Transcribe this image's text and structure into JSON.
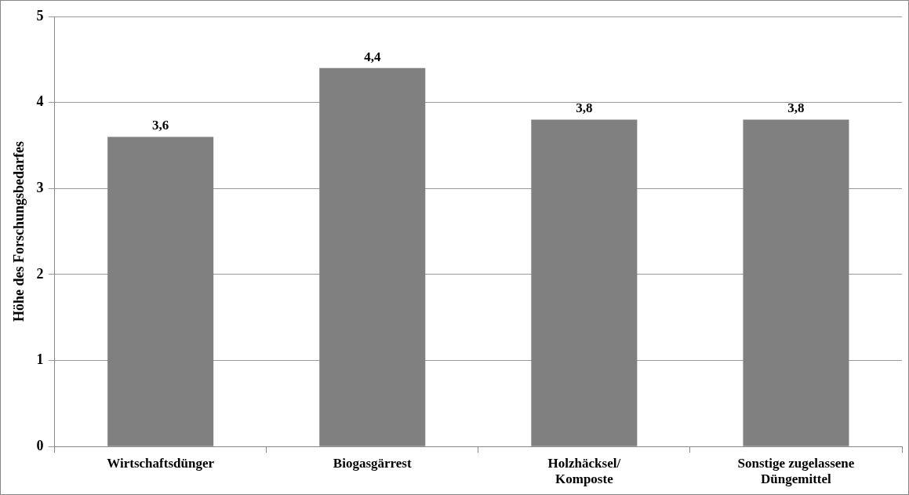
{
  "chart_data": {
    "type": "bar",
    "ylabel": "Höhe des Forschungsbedarfes",
    "categories": [
      "Wirtschaftsdünger",
      "Biogasgärrest",
      "Holzhäcksel/\nKomposte",
      "Sonstige zugelassene\nDüngemittel"
    ],
    "values": [
      3.6,
      4.4,
      3.8,
      3.8
    ],
    "value_labels": [
      "3,6",
      "4,4",
      "3,8",
      "3,8"
    ],
    "color": "#808080",
    "ylim": [
      0,
      5
    ],
    "yticks": [
      0,
      1,
      2,
      3,
      4,
      5
    ],
    "grid": "y",
    "legend": false
  }
}
